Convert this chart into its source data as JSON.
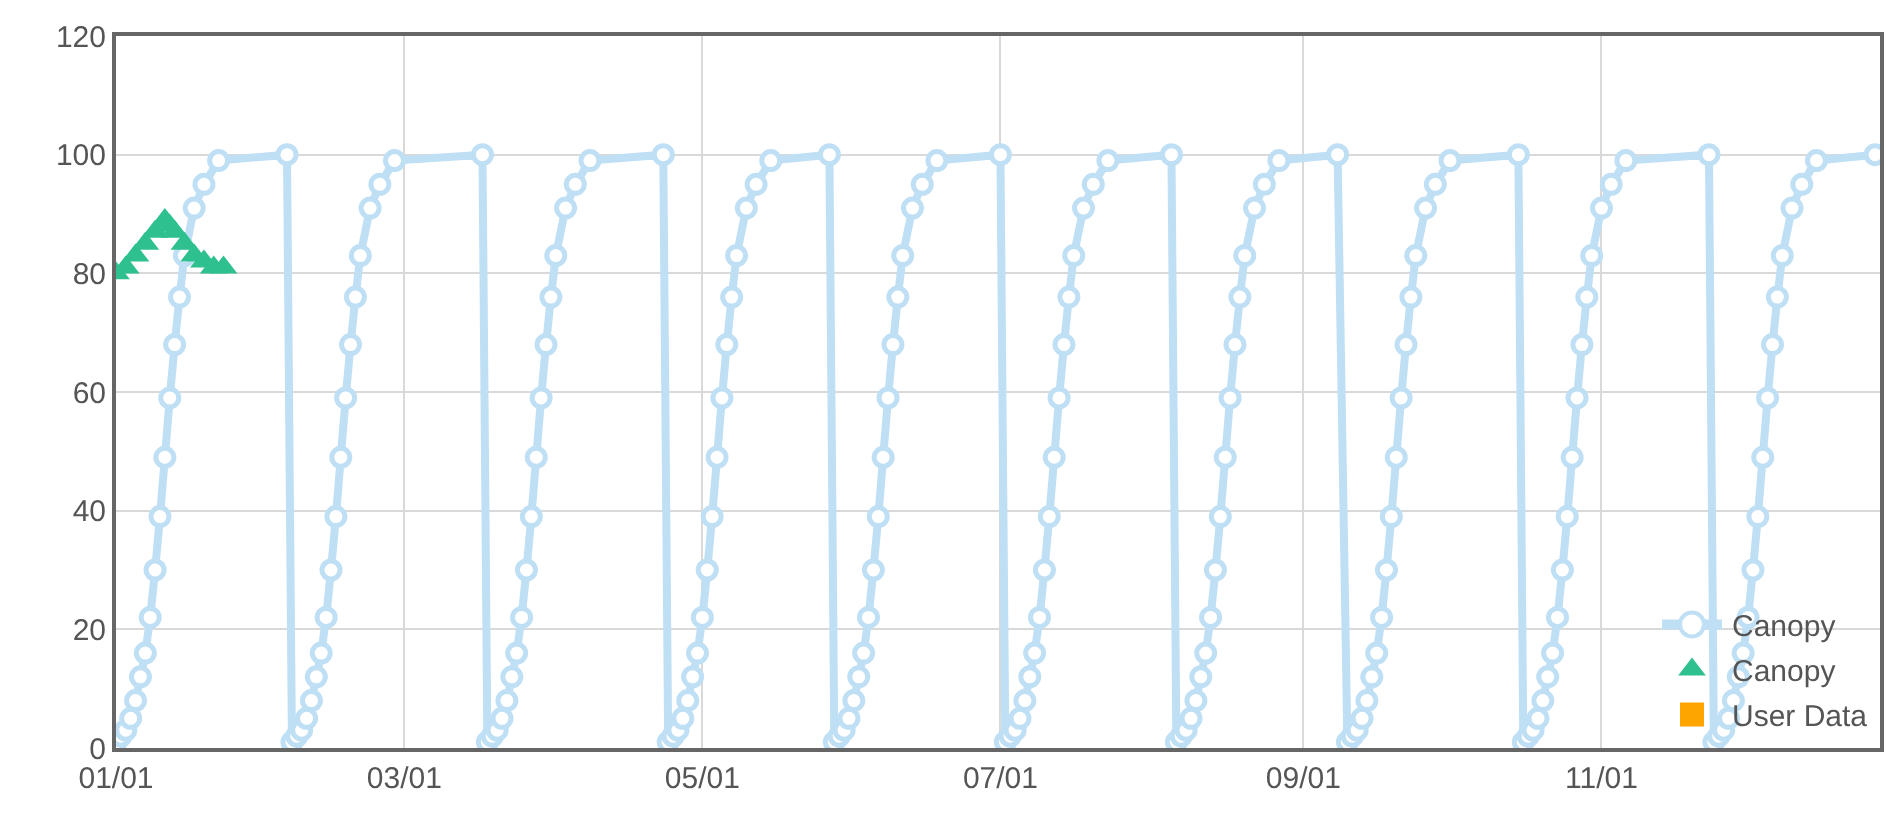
{
  "chart_data": {
    "type": "line",
    "xlim": [
      "--01-01",
      "--12-28"
    ],
    "xticks": [
      {
        "value": "--01-01",
        "label": "01/01"
      },
      {
        "value": "--03-01",
        "label": "03/01"
      },
      {
        "value": "--05-01",
        "label": "05/01"
      },
      {
        "value": "--07-01",
        "label": "07/01"
      },
      {
        "value": "--09-01",
        "label": "09/01"
      },
      {
        "value": "--11-01",
        "label": "11/01"
      }
    ],
    "ylim": [
      0,
      120
    ],
    "yticks": [
      0,
      20,
      40,
      60,
      80,
      100,
      120
    ],
    "grid": true,
    "legend": "bottom right",
    "series": [
      {
        "name": "Canopy",
        "marker": "circle",
        "color": "#bfdff5",
        "x": [
          "--01-01",
          "--01-02",
          "--01-03",
          "--01-04",
          "--01-05",
          "--01-06",
          "--01-07",
          "--01-08",
          "--01-09",
          "--01-10",
          "--01-11",
          "--01-12",
          "--01-13",
          "--01-14",
          "--01-15",
          "--01-17",
          "--01-19",
          "--01-22",
          "--02-05",
          "--02-06",
          "--02-07",
          "--02-08",
          "--02-09",
          "--02-10",
          "--02-11",
          "--02-12",
          "--02-13",
          "--02-14",
          "--02-15",
          "--02-16",
          "--02-17",
          "--02-18",
          "--02-19",
          "--02-20",
          "--02-22",
          "--02-24",
          "--02-27",
          "--03-17",
          "--03-18",
          "--03-19",
          "--03-20",
          "--03-21",
          "--03-22",
          "--03-23",
          "--03-24",
          "--03-25",
          "--03-26",
          "--03-27",
          "--03-28",
          "--03-29",
          "--03-30",
          "--03-31",
          "--04-01",
          "--04-03",
          "--04-05",
          "--04-08",
          "--04-23",
          "--04-24",
          "--04-25",
          "--04-26",
          "--04-27",
          "--04-28",
          "--04-29",
          "--04-30",
          "--05-01",
          "--05-02",
          "--05-03",
          "--05-04",
          "--05-05",
          "--05-06",
          "--05-07",
          "--05-08",
          "--05-10",
          "--05-12",
          "--05-15",
          "--05-27",
          "--05-28",
          "--05-29",
          "--05-30",
          "--05-31",
          "--06-01",
          "--06-02",
          "--06-03",
          "--06-04",
          "--06-05",
          "--06-06",
          "--06-07",
          "--06-08",
          "--06-09",
          "--06-10",
          "--06-11",
          "--06-13",
          "--06-15",
          "--06-18",
          "--07-01",
          "--07-02",
          "--07-03",
          "--07-04",
          "--07-05",
          "--07-06",
          "--07-07",
          "--07-08",
          "--07-09",
          "--07-10",
          "--07-11",
          "--07-12",
          "--07-13",
          "--07-14",
          "--07-15",
          "--07-16",
          "--07-18",
          "--07-20",
          "--07-23",
          "--08-05",
          "--08-06",
          "--08-07",
          "--08-08",
          "--08-09",
          "--08-10",
          "--08-11",
          "--08-12",
          "--08-13",
          "--08-14",
          "--08-15",
          "--08-16",
          "--08-17",
          "--08-18",
          "--08-19",
          "--08-20",
          "--08-22",
          "--08-24",
          "--08-27",
          "--09-08",
          "--09-10",
          "--09-11",
          "--09-12",
          "--09-13",
          "--09-14",
          "--09-15",
          "--09-16",
          "--09-17",
          "--09-18",
          "--09-19",
          "--09-20",
          "--09-21",
          "--09-22",
          "--09-23",
          "--09-24",
          "--09-26",
          "--09-28",
          "--10-01",
          "--10-15",
          "--10-16",
          "--10-17",
          "--10-18",
          "--10-19",
          "--10-20",
          "--10-21",
          "--10-22",
          "--10-23",
          "--10-24",
          "--10-25",
          "--10-26",
          "--10-27",
          "--10-28",
          "--10-29",
          "--10-30",
          "--11-01",
          "--11-03",
          "--11-06",
          "--11-23",
          "--11-24",
          "--11-25",
          "--11-26",
          "--11-27",
          "--11-28",
          "--11-29",
          "--11-30",
          "--12-01",
          "--12-02",
          "--12-03",
          "--12-04",
          "--12-05",
          "--12-06",
          "--12-07",
          "--12-08",
          "--12-10",
          "--12-12",
          "--12-15",
          "--12-27"
        ],
        "values": [
          1,
          2,
          3,
          5,
          8,
          12,
          16,
          22,
          30,
          39,
          49,
          59,
          68,
          76,
          83,
          91,
          95,
          99,
          100,
          1,
          2,
          3,
          5,
          8,
          12,
          16,
          22,
          30,
          39,
          49,
          59,
          68,
          76,
          83,
          91,
          95,
          99,
          100,
          1,
          2,
          3,
          5,
          8,
          12,
          16,
          22,
          30,
          39,
          49,
          59,
          68,
          76,
          83,
          91,
          95,
          99,
          100,
          1,
          2,
          3,
          5,
          8,
          12,
          16,
          22,
          30,
          39,
          49,
          59,
          68,
          76,
          83,
          91,
          95,
          99,
          100,
          1,
          2,
          3,
          5,
          8,
          12,
          16,
          22,
          30,
          39,
          49,
          59,
          68,
          76,
          83,
          91,
          95,
          99,
          100,
          1,
          2,
          3,
          5,
          8,
          12,
          16,
          22,
          30,
          39,
          49,
          59,
          68,
          76,
          83,
          91,
          95,
          99,
          100,
          1,
          2,
          3,
          5,
          8,
          12,
          16,
          22,
          30,
          39,
          49,
          59,
          68,
          76,
          83,
          91,
          95,
          99,
          100,
          1,
          2,
          3,
          5,
          8,
          12,
          16,
          22,
          30,
          39,
          49,
          59,
          68,
          76,
          83,
          91,
          95,
          99,
          100,
          1,
          2,
          3,
          5,
          8,
          12,
          16,
          22,
          30,
          39,
          49,
          59,
          68,
          76,
          83,
          91,
          95,
          99,
          100,
          1,
          2,
          3,
          5,
          8,
          12,
          16,
          22,
          30,
          39,
          49,
          59,
          68,
          76,
          83,
          91,
          95,
          99,
          100
        ]
      },
      {
        "name": "Canopy",
        "type": "scatter",
        "marker": "triangle",
        "color": "#2ec08e",
        "x": [
          "--01-01",
          "--01-03",
          "--01-05",
          "--01-07",
          "--01-09",
          "--01-11",
          "--01-12",
          "--01-13",
          "--01-15",
          "--01-17",
          "--01-19",
          "--01-21",
          "--01-23"
        ],
        "values": [
          80,
          81,
          83,
          85,
          87,
          89,
          88,
          87,
          85,
          83,
          82,
          81,
          81
        ]
      },
      {
        "name": "User Data",
        "type": "scatter",
        "marker": "square",
        "color": "#ffa500"
      }
    ]
  }
}
